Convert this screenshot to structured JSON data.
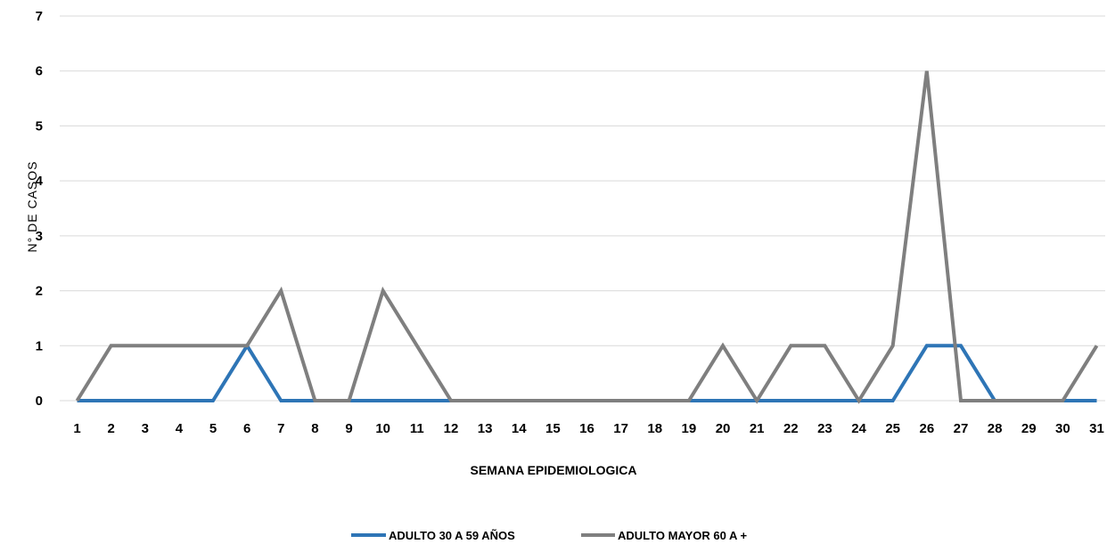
{
  "chart_data": {
    "type": "line",
    "title": "",
    "xlabel": "SEMANA EPIDEMIOLOGICA",
    "ylabel": "N° DE CASOS",
    "ylim": [
      0,
      7
    ],
    "yticks": [
      "0",
      "1",
      "2",
      "3",
      "4",
      "5",
      "6",
      "7"
    ],
    "grid": true,
    "legend_position": "bottom",
    "categories": [
      "1",
      "2",
      "3",
      "4",
      "5",
      "6",
      "7",
      "8",
      "9",
      "10",
      "11",
      "12",
      "13",
      "14",
      "15",
      "16",
      "17",
      "18",
      "19",
      "20",
      "21",
      "22",
      "23",
      "24",
      "25",
      "26",
      "27",
      "28",
      "29",
      "30",
      "31"
    ],
    "series": [
      {
        "name": "ADULTO 30 A 59 AÑOS",
        "color": "#2e75b6",
        "values": [
          0,
          0,
          0,
          0,
          0,
          1,
          0,
          0,
          0,
          0,
          0,
          0,
          0,
          0,
          0,
          0,
          0,
          0,
          0,
          0,
          0,
          0,
          0,
          0,
          0,
          1,
          1,
          0,
          0,
          0,
          0
        ]
      },
      {
        "name": "ADULTO MAYOR 60 A +",
        "color": "#7f7f7f",
        "values": [
          0,
          1,
          1,
          1,
          1,
          1,
          2,
          0,
          0,
          2,
          1,
          0,
          0,
          0,
          0,
          0,
          0,
          0,
          0,
          1,
          0,
          1,
          1,
          0,
          1,
          6,
          0,
          0,
          0,
          0,
          1
        ]
      }
    ]
  }
}
